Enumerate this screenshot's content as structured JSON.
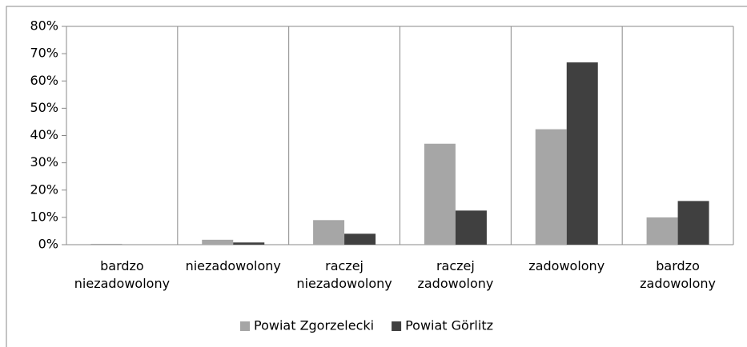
{
  "chart_data": {
    "type": "bar",
    "categories": [
      "bardzo niezadowolony",
      "niezadowolony",
      "raczej niezadowolony",
      "raczej zadowolony",
      "zadowolony",
      "bardzo zadowolony"
    ],
    "series": [
      {
        "name": "Powiat Zgorzelecki",
        "color": "#a6a6a6",
        "values": [
          0.3,
          1.8,
          9,
          37,
          42.3,
          10
        ]
      },
      {
        "name": "Powiat Görlitz",
        "color": "#404040",
        "values": [
          0,
          0.8,
          4,
          12.5,
          66.8,
          16
        ]
      }
    ],
    "ylim": [
      0,
      80
    ],
    "yticks": [
      {
        "value": 0,
        "label": "0%"
      },
      {
        "value": 10,
        "label": "10%"
      },
      {
        "value": 20,
        "label": "20%"
      },
      {
        "value": 30,
        "label": "30%"
      },
      {
        "value": 40,
        "label": "40%"
      },
      {
        "value": 50,
        "label": "50%"
      },
      {
        "value": 60,
        "label": "60%"
      },
      {
        "value": 70,
        "label": "70%"
      },
      {
        "value": 80,
        "label": "80%"
      }
    ],
    "legend": "bottom"
  }
}
